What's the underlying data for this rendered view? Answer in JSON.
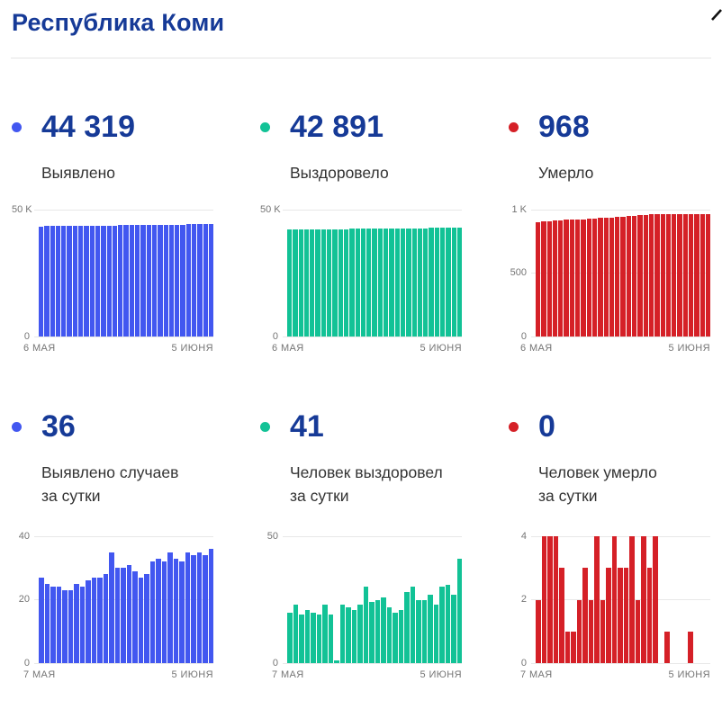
{
  "page": {
    "title": "Республика Коми"
  },
  "accent": {
    "blue": "#4257f0",
    "green": "#12c296",
    "red": "#d52027",
    "navy": "#163a97",
    "text": "#333333",
    "axis": "#757575",
    "gridline": "#e8e8e8"
  },
  "stats": [
    {
      "value": "44 319",
      "label_lines": [
        "Выявлено"
      ],
      "color": "blue",
      "row": 1
    },
    {
      "value": "42 891",
      "label_lines": [
        "Выздоровело"
      ],
      "color": "green",
      "row": 1
    },
    {
      "value": "968",
      "label_lines": [
        "Умерло"
      ],
      "color": "red",
      "row": 1
    },
    {
      "value": "36",
      "label_lines": [
        "Выявлено случаев",
        "за сутки"
      ],
      "color": "blue",
      "row": 2
    },
    {
      "value": "41",
      "label_lines": [
        "Человек выздоровел",
        "за сутки"
      ],
      "color": "green",
      "row": 2
    },
    {
      "value": "0",
      "label_lines": [
        "Человек умерло",
        "за сутки"
      ],
      "color": "red",
      "row": 2
    }
  ],
  "chart_data": [
    {
      "type": "bar",
      "title": "Выявлено",
      "color": "blue",
      "x_start": "6 МАЯ",
      "x_end": "5 ИЮНЯ",
      "ymax": 50000,
      "ylim": [
        0,
        50000
      ],
      "grid": true,
      "ticks": [
        {
          "label": "50 K",
          "value": 50000
        },
        {
          "label": "0",
          "value": 0
        }
      ],
      "values": [
        43435,
        43462,
        43487,
        43511,
        43535,
        43558,
        43581,
        43606,
        43630,
        43656,
        43683,
        43710,
        43738,
        43773,
        43803,
        43833,
        43864,
        43893,
        43920,
        43948,
        43980,
        44013,
        44045,
        44080,
        44113,
        44145,
        44180,
        44214,
        44249,
        44283,
        44319
      ]
    },
    {
      "type": "bar",
      "title": "Выздоровело",
      "color": "green",
      "x_start": "6 МАЯ",
      "x_end": "5 ИЮНЯ",
      "ymax": 50000,
      "ylim": [
        0,
        50000
      ],
      "grid": true,
      "ticks": [
        {
          "label": "50 K",
          "value": 50000
        },
        {
          "label": "0",
          "value": 0
        }
      ],
      "values": [
        42182,
        42202,
        42225,
        42244,
        42265,
        42285,
        42304,
        42327,
        42346,
        42347,
        42370,
        42392,
        42413,
        42436,
        42466,
        42490,
        42515,
        42541,
        42563,
        42583,
        42604,
        42632,
        42662,
        42687,
        42712,
        42739,
        42762,
        42792,
        42823,
        42850,
        42891
      ]
    },
    {
      "type": "bar",
      "title": "Умерло",
      "color": "red",
      "x_start": "6 МАЯ",
      "x_end": "5 ИЮНЯ",
      "ymax": 1000,
      "ylim": [
        0,
        1000
      ],
      "grid": true,
      "ticks": [
        {
          "label": "1 K",
          "value": 1000
        },
        {
          "label": "500",
          "value": 500
        },
        {
          "label": "0",
          "value": 0
        }
      ],
      "values": [
        904,
        906,
        910,
        914,
        918,
        921,
        922,
        923,
        925,
        928,
        930,
        934,
        936,
        939,
        943,
        946,
        949,
        953,
        955,
        959,
        962,
        966,
        966,
        967,
        967,
        967,
        967,
        968,
        968,
        968,
        968
      ]
    },
    {
      "type": "bar",
      "title": "Выявлено случаев за сутки",
      "color": "blue",
      "x_start": "7 МАЯ",
      "x_end": "5 ИЮНЯ",
      "ymax": 40,
      "ylim": [
        0,
        40
      ],
      "grid": true,
      "ticks": [
        {
          "label": "40",
          "value": 40
        },
        {
          "label": "20",
          "value": 20
        },
        {
          "label": "0",
          "value": 0
        }
      ],
      "values": [
        27,
        25,
        24,
        24,
        23,
        23,
        25,
        24,
        26,
        27,
        27,
        28,
        35,
        30,
        30,
        31,
        29,
        27,
        28,
        32,
        33,
        32,
        35,
        33,
        32,
        35,
        34,
        35,
        34,
        36
      ]
    },
    {
      "type": "bar",
      "title": "Человек выздоровел за сутки",
      "color": "green",
      "x_start": "7 МАЯ",
      "x_end": "5 ИЮНЯ",
      "ymax": 50,
      "ylim": [
        0,
        50
      ],
      "grid": true,
      "ticks": [
        {
          "label": "50",
          "value": 50
        },
        {
          "label": "0",
          "value": 0
        }
      ],
      "values": [
        20,
        23,
        19,
        21,
        20,
        19,
        23,
        19,
        1,
        23,
        22,
        21,
        23,
        30,
        24,
        25,
        26,
        22,
        20,
        21,
        28,
        30,
        25,
        25,
        27,
        23,
        30,
        31,
        27,
        41
      ]
    },
    {
      "type": "bar",
      "title": "Человек умерло за сутки",
      "color": "red",
      "x_start": "7 МАЯ",
      "x_end": "5 ИЮНЯ",
      "ymax": 4,
      "ylim": [
        0,
        4
      ],
      "grid": true,
      "ticks": [
        {
          "label": "4",
          "value": 4
        },
        {
          "label": "2",
          "value": 2
        },
        {
          "label": "0",
          "value": 0
        }
      ],
      "values": [
        2,
        4,
        4,
        4,
        3,
        1,
        1,
        2,
        3,
        2,
        4,
        2,
        3,
        4,
        3,
        3,
        4,
        2,
        4,
        3,
        4,
        0,
        1,
        0,
        0,
        0,
        1,
        0,
        0,
        0
      ]
    }
  ]
}
